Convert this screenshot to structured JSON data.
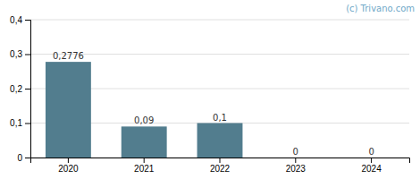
{
  "chart_data": {
    "type": "bar",
    "categories": [
      "2020",
      "2021",
      "2022",
      "2023",
      "2024"
    ],
    "values": [
      0.2776,
      0.09,
      0.1,
      0,
      0
    ],
    "value_labels": [
      "0,2776",
      "0,09",
      "0,1",
      "0",
      "0"
    ],
    "data_labels": true,
    "color": "#527d8e",
    "ylim": [
      0,
      0.4
    ],
    "yticks": [
      0,
      {
        "value": 0.1,
        "label": "0,1"
      },
      {
        "value": 0.2,
        "label": "0,2"
      },
      {
        "value": 0.3,
        "label": "0,3"
      },
      {
        "value": 0.4,
        "label": "0,4"
      }
    ],
    "grid": true,
    "annotations": [
      "(c) Trivano.com"
    ]
  }
}
